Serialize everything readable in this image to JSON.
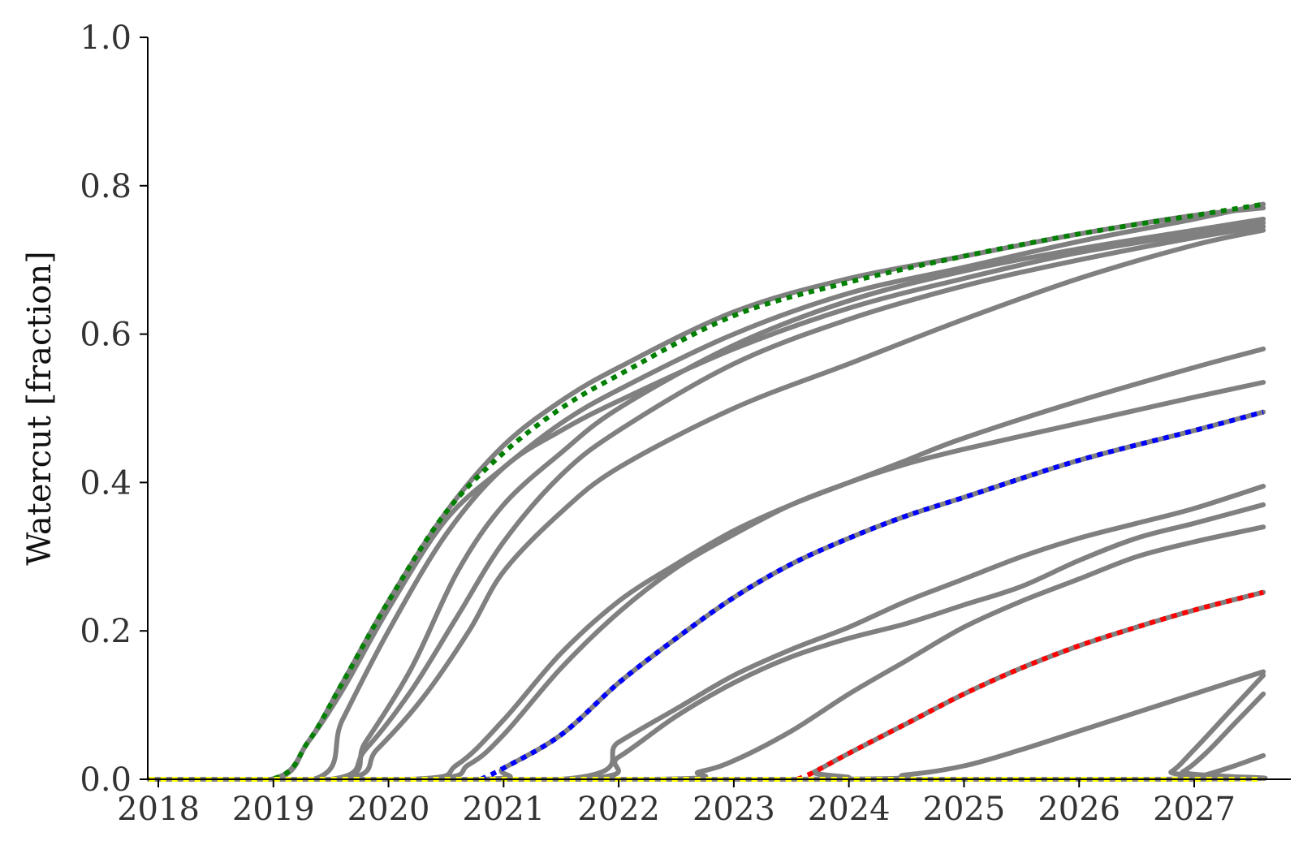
{
  "chart_data": {
    "type": "line",
    "title": "",
    "xlabel": "",
    "ylabel": "Watercut [fraction]",
    "xlim": [
      2017.92,
      2027.6
    ],
    "ylim": [
      0.0,
      1.0
    ],
    "x_ticks": [
      "2018",
      "2019",
      "2020",
      "2021",
      "2022",
      "2023",
      "2024",
      "2025",
      "2026",
      "2027"
    ],
    "y_ticks": [
      "0.0",
      "0.2",
      "0.4",
      "0.6",
      "0.8",
      "1.0"
    ],
    "grid": false,
    "legend": "none",
    "gray_color": "#808080",
    "series": [
      {
        "color": "#808080",
        "x": [
          2017.92,
          2018.98,
          2019.3,
          2019.6,
          2020.0,
          2020.5,
          2021.0,
          2021.5,
          2022.0,
          2023.0,
          2024.0,
          2025.0,
          2026.0,
          2027.0,
          2027.6
        ],
        "y": [
          0.0,
          0.0,
          0.05,
          0.13,
          0.24,
          0.36,
          0.45,
          0.51,
          0.555,
          0.63,
          0.675,
          0.705,
          0.735,
          0.76,
          0.77
        ]
      },
      {
        "color": "#808080",
        "x": [
          2017.92,
          2019.0,
          2019.3,
          2019.6,
          2020.0,
          2020.5,
          2021.0,
          2021.5,
          2022.0,
          2023.0,
          2024.0,
          2025.0,
          2026.0,
          2027.0,
          2027.6
        ],
        "y": [
          0.0,
          0.0,
          0.05,
          0.12,
          0.23,
          0.35,
          0.42,
          0.48,
          0.525,
          0.6,
          0.655,
          0.69,
          0.725,
          0.755,
          0.775
        ]
      },
      {
        "color": "#808080",
        "x": [
          2017.92,
          2019.35,
          2019.6,
          2020.0,
          2020.5,
          2021.0,
          2021.5,
          2022.0,
          2023.0,
          2024.0,
          2025.0,
          2026.0,
          2027.0,
          2027.6
        ],
        "y": [
          0.0,
          0.0,
          0.08,
          0.2,
          0.33,
          0.42,
          0.47,
          0.51,
          0.58,
          0.635,
          0.675,
          0.71,
          0.735,
          0.75
        ]
      },
      {
        "color": "#808080",
        "x": [
          2017.92,
          2019.55,
          2019.8,
          2020.2,
          2020.6,
          2021.0,
          2021.5,
          2022.0,
          2023.0,
          2024.0,
          2025.0,
          2026.0,
          2027.0,
          2027.6
        ],
        "y": [
          0.0,
          0.0,
          0.05,
          0.15,
          0.28,
          0.37,
          0.44,
          0.5,
          0.585,
          0.645,
          0.685,
          0.715,
          0.74,
          0.755
        ]
      },
      {
        "color": "#808080",
        "x": [
          2017.92,
          2019.5,
          2019.8,
          2020.2,
          2020.6,
          2021.0,
          2021.5,
          2022.0,
          2023.0,
          2024.0,
          2025.0,
          2026.0,
          2027.0,
          2027.6
        ],
        "y": [
          0.0,
          0.0,
          0.04,
          0.12,
          0.22,
          0.32,
          0.41,
          0.47,
          0.56,
          0.62,
          0.665,
          0.7,
          0.73,
          0.745
        ]
      },
      {
        "color": "#808080",
        "x": [
          2017.92,
          2019.6,
          2019.9,
          2020.3,
          2020.7,
          2021.0,
          2021.5,
          2022.0,
          2023.0,
          2024.0,
          2025.0,
          2026.0,
          2027.0,
          2027.6
        ],
        "y": [
          0.0,
          0.0,
          0.04,
          0.11,
          0.2,
          0.28,
          0.36,
          0.42,
          0.5,
          0.56,
          0.62,
          0.675,
          0.72,
          0.74
        ]
      },
      {
        "color": "#808080",
        "x": [
          2017.92,
          2020.2,
          2020.6,
          2021.0,
          2021.5,
          2022.0,
          2022.5,
          2023.0,
          2023.5,
          2024.0,
          2024.5,
          2025.0,
          2026.0,
          2027.0,
          2027.6
        ],
        "y": [
          0.0,
          0.0,
          0.02,
          0.08,
          0.17,
          0.24,
          0.29,
          0.335,
          0.37,
          0.4,
          0.43,
          0.46,
          0.51,
          0.555,
          0.58
        ]
      },
      {
        "color": "#808080",
        "x": [
          2017.92,
          2020.3,
          2020.7,
          2021.0,
          2021.5,
          2022.0,
          2022.5,
          2023.0,
          2023.5,
          2024.0,
          2024.5,
          2025.0,
          2026.0,
          2027.0,
          2027.6
        ],
        "y": [
          0.0,
          0.0,
          0.02,
          0.06,
          0.15,
          0.225,
          0.285,
          0.33,
          0.37,
          0.4,
          0.425,
          0.445,
          0.48,
          0.515,
          0.535
        ]
      },
      {
        "color": "#808080",
        "x": [
          2017.92,
          2020.8,
          2021.0,
          2021.5,
          2022.0,
          2022.5,
          2023.0,
          2023.5,
          2024.0,
          2024.5,
          2025.0,
          2026.0,
          2027.0,
          2027.6
        ],
        "y": [
          0.0,
          0.0,
          0.015,
          0.06,
          0.13,
          0.19,
          0.245,
          0.29,
          0.325,
          0.355,
          0.38,
          0.43,
          0.47,
          0.495
        ]
      },
      {
        "color": "#808080",
        "x": [
          2017.92,
          2021.5,
          2022.0,
          2022.5,
          2023.0,
          2023.5,
          2024.0,
          2024.5,
          2025.0,
          2025.5,
          2026.0,
          2026.5,
          2027.0,
          2027.6
        ],
        "y": [
          0.0,
          0.0,
          0.05,
          0.095,
          0.14,
          0.175,
          0.205,
          0.24,
          0.27,
          0.3,
          0.325,
          0.345,
          0.365,
          0.395
        ]
      },
      {
        "color": "#808080",
        "x": [
          2017.92,
          2021.6,
          2022.0,
          2022.5,
          2023.0,
          2023.5,
          2024.0,
          2024.5,
          2025.0,
          2025.5,
          2026.0,
          2026.5,
          2027.0,
          2027.6
        ],
        "y": [
          0.0,
          0.0,
          0.03,
          0.085,
          0.13,
          0.165,
          0.19,
          0.21,
          0.235,
          0.26,
          0.295,
          0.325,
          0.345,
          0.37
        ]
      },
      {
        "color": "#808080",
        "x": [
          2017.92,
          2022.3,
          2022.7,
          2023.0,
          2023.5,
          2024.0,
          2024.5,
          2025.0,
          2025.5,
          2026.0,
          2026.5,
          2027.0,
          2027.6
        ],
        "y": [
          0.0,
          0.0,
          0.01,
          0.025,
          0.065,
          0.115,
          0.16,
          0.205,
          0.24,
          0.27,
          0.3,
          0.32,
          0.34
        ]
      },
      {
        "color": "#808080",
        "x": [
          2017.92,
          2023.55,
          2023.7,
          2024.0,
          2024.5,
          2025.0,
          2025.5,
          2026.0,
          2026.5,
          2027.0,
          2027.6
        ],
        "y": [
          0.0,
          0.0,
          0.01,
          0.035,
          0.075,
          0.115,
          0.15,
          0.18,
          0.205,
          0.228,
          0.252
        ]
      },
      {
        "color": "#808080",
        "x": [
          2017.92,
          2023.8,
          2024.5,
          2025.0,
          2025.5,
          2026.0,
          2026.5,
          2027.0,
          2027.6
        ],
        "y": [
          0.0,
          0.0,
          0.006,
          0.018,
          0.04,
          0.065,
          0.09,
          0.115,
          0.145
        ]
      },
      {
        "color": "#808080",
        "x": [
          2017.92,
          2026.6,
          2026.8,
          2027.0,
          2027.3,
          2027.6
        ],
        "y": [
          0.0,
          0.0,
          0.01,
          0.04,
          0.09,
          0.14
        ]
      },
      {
        "color": "#808080",
        "x": [
          2017.92,
          2026.7,
          2026.9,
          2027.1,
          2027.35,
          2027.6
        ],
        "y": [
          0.0,
          0.0,
          0.01,
          0.035,
          0.075,
          0.115
        ]
      },
      {
        "color": "#808080",
        "x": [
          2017.92,
          2026.9,
          2027.1,
          2027.35,
          2027.6
        ],
        "y": [
          0.0,
          0.0,
          0.006,
          0.018,
          0.032
        ]
      },
      {
        "color": "#008000",
        "style": "dotted",
        "x": [
          2017.92,
          2018.98,
          2019.3,
          2019.6,
          2020.0,
          2020.5,
          2021.0,
          2021.5,
          2022.0,
          2023.0,
          2024.0,
          2025.0,
          2026.0,
          2027.0,
          2027.6
        ],
        "y": [
          0.0,
          0.0,
          0.05,
          0.13,
          0.24,
          0.36,
          0.44,
          0.5,
          0.545,
          0.625,
          0.67,
          0.705,
          0.735,
          0.76,
          0.775
        ]
      },
      {
        "color": "#0000ff",
        "style": "dotted",
        "x": [
          2020.8,
          2021.0,
          2021.5,
          2022.0,
          2022.5,
          2023.0,
          2023.5,
          2024.0,
          2024.5,
          2025.0,
          2026.0,
          2027.0,
          2027.6
        ],
        "y": [
          0.0,
          0.015,
          0.06,
          0.13,
          0.19,
          0.245,
          0.29,
          0.325,
          0.355,
          0.38,
          0.43,
          0.47,
          0.495
        ]
      },
      {
        "color": "#ff0000",
        "style": "dotted",
        "x": [
          2023.55,
          2023.7,
          2024.0,
          2024.5,
          2025.0,
          2025.5,
          2026.0,
          2026.5,
          2027.0,
          2027.6
        ],
        "y": [
          0.0,
          0.01,
          0.035,
          0.075,
          0.115,
          0.15,
          0.18,
          0.205,
          0.228,
          0.252
        ]
      },
      {
        "color": "#ffff00",
        "style": "dotted",
        "x": [
          2017.92,
          2027.6
        ],
        "y": [
          0.0,
          0.0
        ]
      }
    ]
  }
}
